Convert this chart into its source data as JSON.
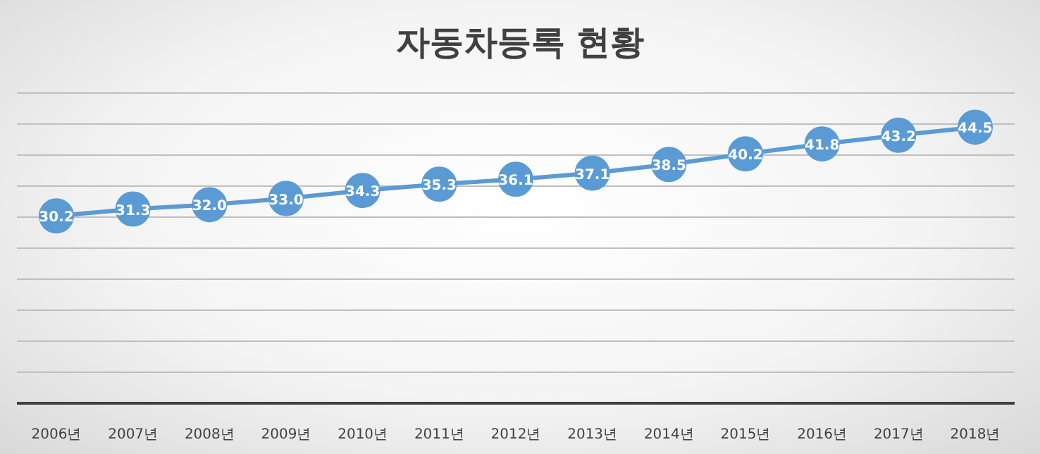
{
  "chart_data": {
    "type": "line",
    "title": "자동차등록 현황",
    "categories": [
      "2006년",
      "2007년",
      "2008년",
      "2009년",
      "2010년",
      "2011년",
      "2012년",
      "2013년",
      "2014년",
      "2015년",
      "2016년",
      "2017년",
      "2018년"
    ],
    "series": [
      {
        "color": "#5b9bd5",
        "values": [
          30.2,
          31.3,
          32.0,
          33.0,
          34.3,
          35.3,
          36.1,
          37.1,
          38.5,
          40.2,
          41.8,
          43.2,
          44.5
        ],
        "value_labels": [
          "30.2",
          "31.3",
          "32.0",
          "33.0",
          "34.3",
          "35.3",
          "36.1",
          "37.1",
          "38.5",
          "40.2",
          "41.8",
          "43.2",
          "44.5"
        ]
      }
    ],
    "ylim": [
      0,
      50
    ],
    "yticks": [
      {
        "value": 0,
        "label": null
      },
      {
        "value": 5,
        "label": null
      },
      {
        "value": 10,
        "label": null
      },
      {
        "value": 15,
        "label": null
      },
      {
        "value": 20,
        "label": null
      },
      {
        "value": 25,
        "label": null
      },
      {
        "value": 30,
        "label": null
      },
      {
        "value": 35,
        "label": null
      },
      {
        "value": 40,
        "label": null
      },
      {
        "value": 45,
        "label": null
      },
      {
        "value": 50,
        "label": null
      }
    ],
    "grid": "y",
    "tick_labels": "x",
    "marker": "circle",
    "line_style": "solid",
    "legend": false
  }
}
